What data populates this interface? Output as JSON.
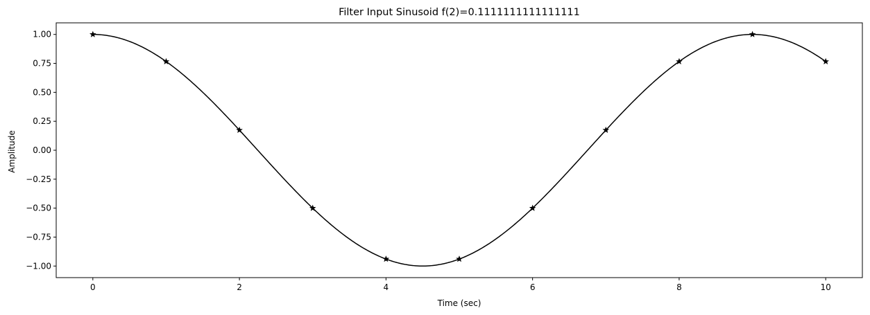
{
  "chart_data": {
    "type": "line",
    "title": "Filter Input Sinusoid f(2)=0.1111111111111111",
    "xlabel": "Time (sec)",
    "ylabel": "Amplitude",
    "xlim": [
      -0.5,
      10.5
    ],
    "ylim": [
      -1.1,
      1.1
    ],
    "x_ticks": [
      0,
      2,
      4,
      6,
      8,
      10
    ],
    "y_ticks": [
      1.0,
      0.75,
      0.5,
      0.25,
      0.0,
      -0.25,
      -0.5,
      -0.75,
      -1.0
    ],
    "x_tick_labels": [
      "0",
      "2",
      "4",
      "6",
      "8",
      "10"
    ],
    "y_tick_labels": [
      "1.00",
      "0.75",
      "0.50",
      "0.25",
      "0.00",
      "−0.25",
      "−0.50",
      "−0.75",
      "−1.00"
    ],
    "grid": false,
    "line_color": "#000000",
    "series": [
      {
        "kind": "continuous-curve",
        "function": "cos(2*pi*f*t)",
        "frequency": 0.1111111111111111,
        "t_range": [
          0,
          10
        ]
      },
      {
        "kind": "sampled-points",
        "marker": "star",
        "x": [
          0,
          1,
          2,
          3,
          4,
          5,
          6,
          7,
          8,
          9,
          10
        ],
        "y": [
          1.0,
          0.766,
          0.1736,
          -0.5,
          -0.9397,
          -0.9397,
          -0.5,
          0.1736,
          0.766,
          1.0,
          0.766
        ]
      }
    ]
  }
}
